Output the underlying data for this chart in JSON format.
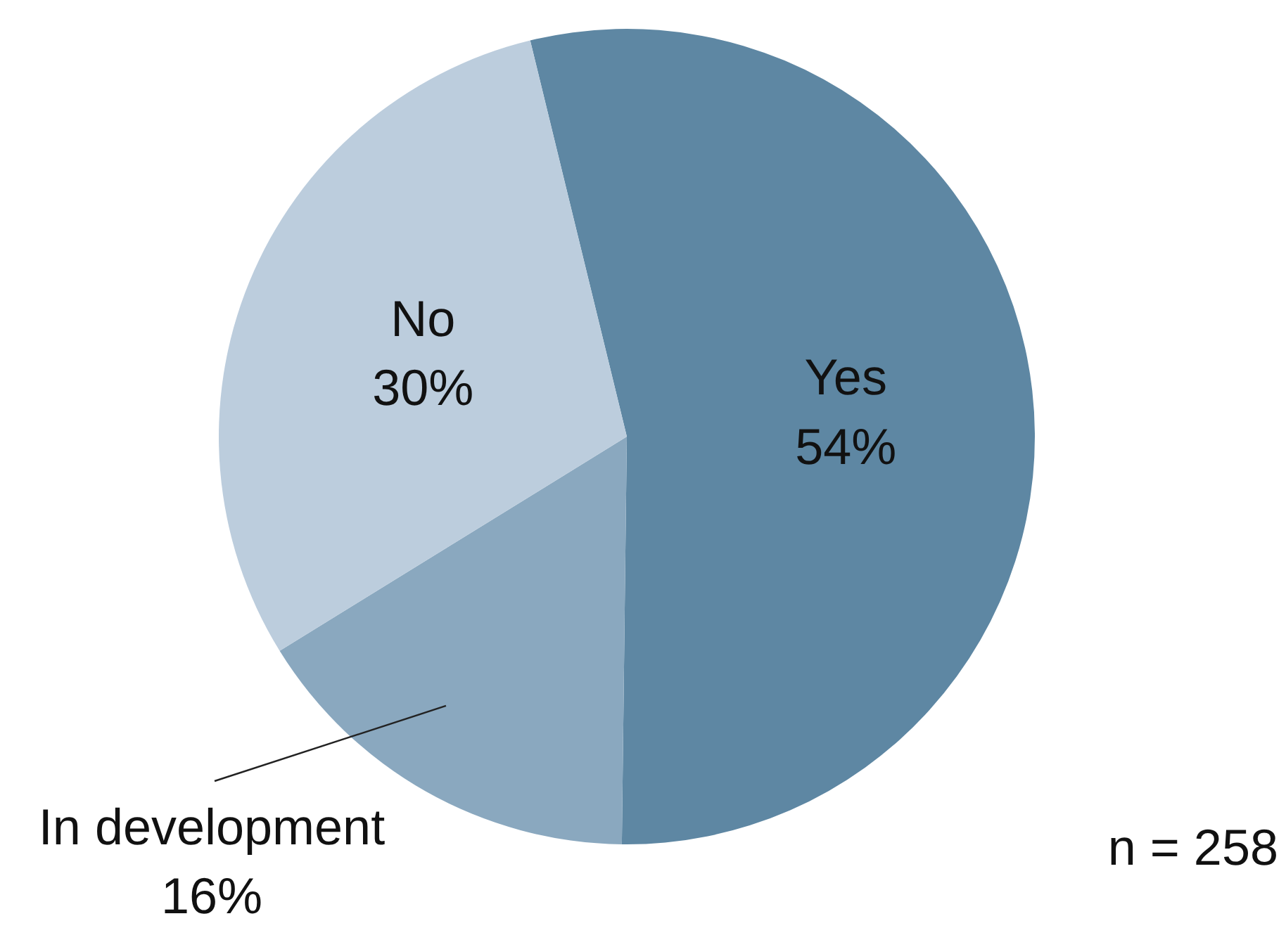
{
  "chart_data": {
    "type": "pie",
    "categories": [
      "Yes",
      "In development",
      "No"
    ],
    "values": [
      54,
      16,
      30
    ],
    "colors": [
      "#5e87a3",
      "#8aa8bf",
      "#bccddd"
    ],
    "value_labels": [
      "54%",
      "16%",
      "30%"
    ],
    "annotations": [
      "n = 258"
    ]
  }
}
